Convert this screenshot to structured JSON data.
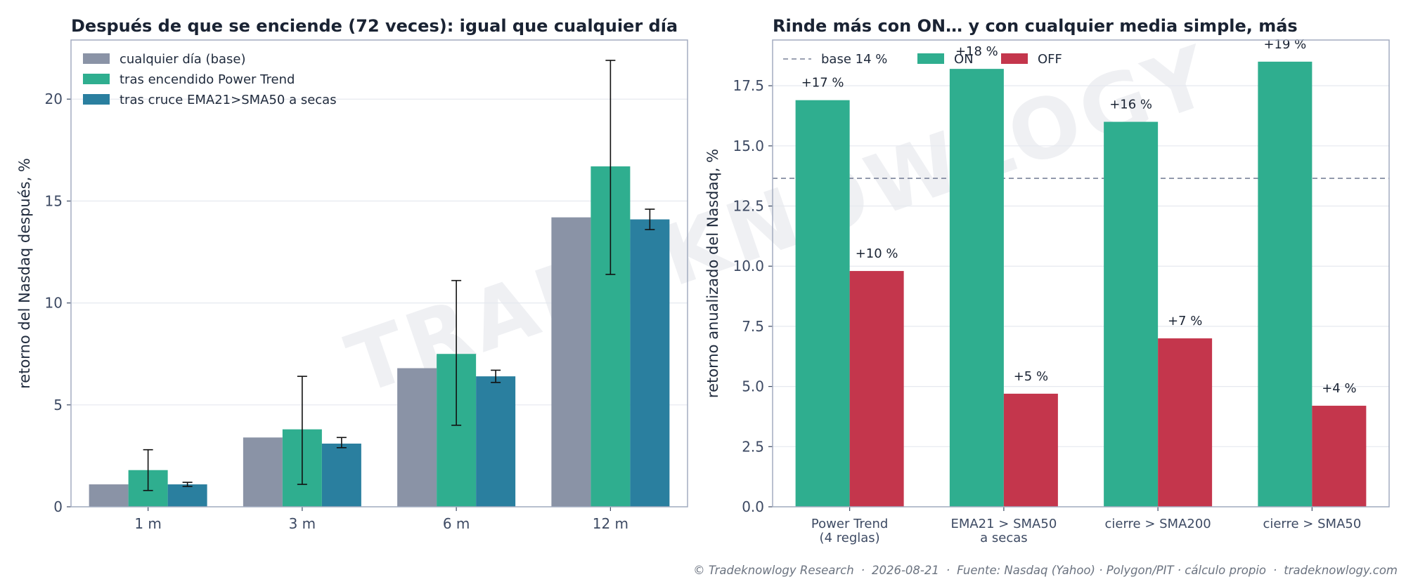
{
  "watermark": "TRADEKNOWLOGY",
  "footer": {
    "copyright": "© Tradeknowlogy Research",
    "date": "2026-08-21",
    "source": "Fuente: Nasdaq (Yahoo) · Polygon/PIT · cálculo propio",
    "site": "tradeknowlogy.com",
    "separator": "·"
  },
  "chart_data": [
    {
      "type": "bar",
      "title": "Después de que se enciende (72 veces): igual que cualquier día",
      "xlabel": "",
      "ylabel": "retorno del Nasdaq después, %",
      "categories": [
        "1 m",
        "3 m",
        "6 m",
        "12 m"
      ],
      "ylim": [
        0,
        22.9
      ],
      "yticks": [
        0,
        5,
        10,
        15,
        20
      ],
      "grid": true,
      "legend_position": "top-left",
      "series": [
        {
          "name": "cualquier día (base)",
          "color": "#8a93a6",
          "values": [
            1.1,
            3.4,
            6.8,
            14.2
          ]
        },
        {
          "name": "tras encendido Power Trend",
          "color": "#2fae8f",
          "values": [
            1.8,
            3.8,
            7.5,
            16.7
          ],
          "error_low": [
            0.8,
            1.1,
            4.0,
            11.4
          ],
          "error_high": [
            2.8,
            6.4,
            11.1,
            21.9
          ]
        },
        {
          "name": "tras cruce EMA21>SMA50 a secas",
          "color": "#2a7f9f",
          "values": [
            1.1,
            3.1,
            6.4,
            14.1
          ],
          "error_low": [
            1.0,
            2.9,
            6.1,
            13.6
          ],
          "error_high": [
            1.2,
            3.4,
            6.7,
            14.6
          ]
        }
      ]
    },
    {
      "type": "bar",
      "title": "Rinde más con ON… y con cualquier media simple, más",
      "xlabel": "",
      "ylabel": "retorno anualizado del Nasdaq, %",
      "categories": [
        [
          "Power Trend",
          "(4 reglas)"
        ],
        [
          "EMA21 > SMA50",
          "a secas"
        ],
        [
          "cierre > SMA200"
        ],
        [
          "cierre > SMA50"
        ]
      ],
      "ylim": [
        0,
        19.4
      ],
      "yticks": [
        0.0,
        2.5,
        5.0,
        7.5,
        10.0,
        12.5,
        15.0,
        17.5
      ],
      "grid": true,
      "legend_position": "top",
      "baseline": {
        "label": "base 14 %",
        "value": 13.65,
        "color": "#7a8299"
      },
      "series": [
        {
          "name": "ON",
          "color": "#2fae8f",
          "values": [
            16.9,
            18.2,
            16.0,
            18.5
          ],
          "labels": [
            "+17 %",
            "+18 %",
            "+16 %",
            "+19 %"
          ]
        },
        {
          "name": "OFF",
          "color": "#c4364c",
          "values": [
            9.8,
            4.7,
            7.0,
            4.2
          ],
          "labels": [
            "+10 %",
            "+5 %",
            "+7 %",
            "+4 %"
          ]
        }
      ]
    }
  ]
}
